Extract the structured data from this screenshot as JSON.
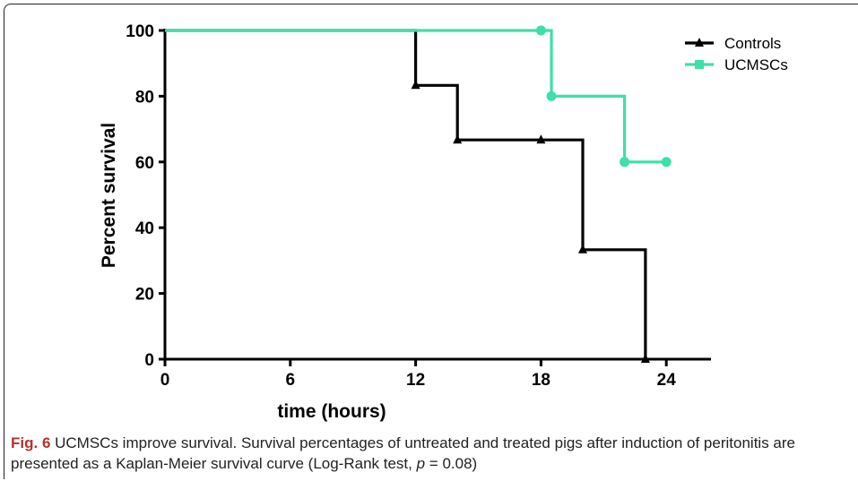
{
  "chart_data": {
    "type": "line",
    "xlabel": "time (hours)",
    "ylabel": "Percent survival",
    "xlim": [
      0,
      25
    ],
    "ylim": [
      0,
      100
    ],
    "xticks": [
      0,
      6,
      12,
      18,
      24
    ],
    "yticks": [
      0,
      20,
      40,
      60,
      80,
      100
    ],
    "legend_position": "top-right",
    "series": [
      {
        "name": "Controls",
        "color": "#000000",
        "marker": "triangle",
        "step": true,
        "x": [
          0,
          12,
          14,
          20,
          23
        ],
        "y": [
          100,
          83.3,
          66.7,
          33.3,
          0
        ],
        "marked_points": [
          [
            12,
            83.3
          ],
          [
            14,
            66.7
          ],
          [
            18,
            66.7
          ],
          [
            20,
            33.3
          ],
          [
            23,
            0
          ]
        ]
      },
      {
        "name": "UCMSCs",
        "color": "#3ee0a6",
        "marker": "circle",
        "step": true,
        "x": [
          0,
          18.5,
          22
        ],
        "y": [
          100,
          80,
          60
        ],
        "end_x": 24,
        "marked_points": [
          [
            18,
            100
          ],
          [
            18.5,
            80
          ],
          [
            22,
            60
          ],
          [
            24,
            60
          ]
        ]
      }
    ]
  },
  "caption": {
    "fig_label": "Fig. 6",
    "text_before_p": " UCMSCs improve survival. Survival percentages of untreated and treated pigs after induction of peritonitis are presented as a Kaplan-Meier survival curve (Log-Rank test, ",
    "p_symbol": "p",
    "text_after_p": " = 0.08)"
  }
}
